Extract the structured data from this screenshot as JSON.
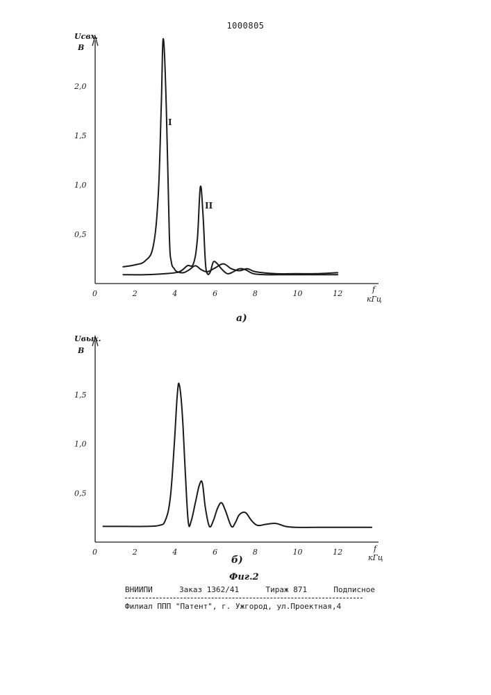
{
  "page_number": "1000805",
  "chart_data": [
    {
      "type": "line",
      "caption": "а)",
      "ylabel": "Uсвх.",
      "yunit": "В",
      "xlabel": "f",
      "xunit": "кГц",
      "xlim": [
        0,
        14
      ],
      "ylim": [
        0,
        2.5
      ],
      "x_ticks": [
        "0",
        "2",
        "4",
        "6",
        "8",
        "10",
        "12"
      ],
      "y_ticks": [
        "0,5",
        "1,0",
        "1,5",
        "2,0"
      ],
      "series": [
        {
          "name": "I",
          "x": [
            1.4,
            2.0,
            2.5,
            2.9,
            3.15,
            3.3,
            3.4,
            3.55,
            3.7,
            3.8,
            3.95,
            4.1,
            4.4,
            4.7,
            5.0,
            5.3,
            5.6,
            6.0,
            6.4,
            6.8,
            7.2,
            7.6,
            8.0,
            9.0,
            10.0,
            11.0,
            12.1
          ],
          "y": [
            0.17,
            0.19,
            0.23,
            0.38,
            0.9,
            1.8,
            2.48,
            1.8,
            0.5,
            0.22,
            0.15,
            0.12,
            0.11,
            0.14,
            0.18,
            0.14,
            0.12,
            0.16,
            0.2,
            0.15,
            0.13,
            0.15,
            0.12,
            0.1,
            0.1,
            0.1,
            0.11
          ]
        },
        {
          "name": "II",
          "x": [
            1.4,
            2.5,
            3.5,
            4.2,
            4.6,
            4.9,
            5.1,
            5.25,
            5.38,
            5.5,
            5.6,
            5.75,
            5.9,
            6.1,
            6.3,
            6.6,
            6.9,
            7.2,
            7.5,
            7.9,
            8.5,
            9.5,
            10.5,
            11.5,
            12.1
          ],
          "y": [
            0.09,
            0.09,
            0.1,
            0.12,
            0.18,
            0.2,
            0.45,
            0.98,
            0.7,
            0.22,
            0.1,
            0.12,
            0.22,
            0.2,
            0.15,
            0.1,
            0.12,
            0.15,
            0.14,
            0.1,
            0.09,
            0.09,
            0.09,
            0.09,
            0.09
          ]
        }
      ]
    },
    {
      "type": "line",
      "caption": "б)",
      "ylabel": "Uвых.",
      "yunit": "В",
      "xlabel": "f",
      "xunit": "кГц",
      "xlim": [
        0,
        14
      ],
      "ylim": [
        0,
        2.0
      ],
      "x_ticks": [
        "0",
        "2",
        "4",
        "6",
        "8",
        "10",
        "12"
      ],
      "y_ticks": [
        "0,5",
        "1,0",
        "1,5"
      ],
      "series": [
        {
          "name": "",
          "x": [
            0.4,
            1.5,
            2.5,
            3.2,
            3.5,
            3.75,
            3.95,
            4.1,
            4.2,
            4.35,
            4.5,
            4.65,
            4.8,
            5.0,
            5.2,
            5.35,
            5.5,
            5.7,
            5.9,
            6.1,
            6.3,
            6.5,
            6.8,
            7.0,
            7.2,
            7.5,
            7.8,
            8.1,
            8.5,
            9.0,
            9.5,
            10.0,
            11.0,
            12.5,
            13.8
          ],
          "y": [
            0.16,
            0.16,
            0.16,
            0.17,
            0.22,
            0.45,
            1.0,
            1.5,
            1.6,
            1.3,
            0.7,
            0.2,
            0.22,
            0.4,
            0.58,
            0.6,
            0.35,
            0.16,
            0.22,
            0.34,
            0.4,
            0.32,
            0.16,
            0.2,
            0.28,
            0.3,
            0.22,
            0.17,
            0.18,
            0.19,
            0.16,
            0.15,
            0.15,
            0.15,
            0.15
          ]
        }
      ]
    }
  ],
  "figure_title": "Фиг.2",
  "footer": {
    "org": "ВНИИПИ",
    "order": "Заказ 1362/41",
    "print_run": "Тираж 871",
    "subscription": "Подписное",
    "branch": "Филиал ППП \"Патент\", г. Ужгород, ул.Проектная,4"
  }
}
